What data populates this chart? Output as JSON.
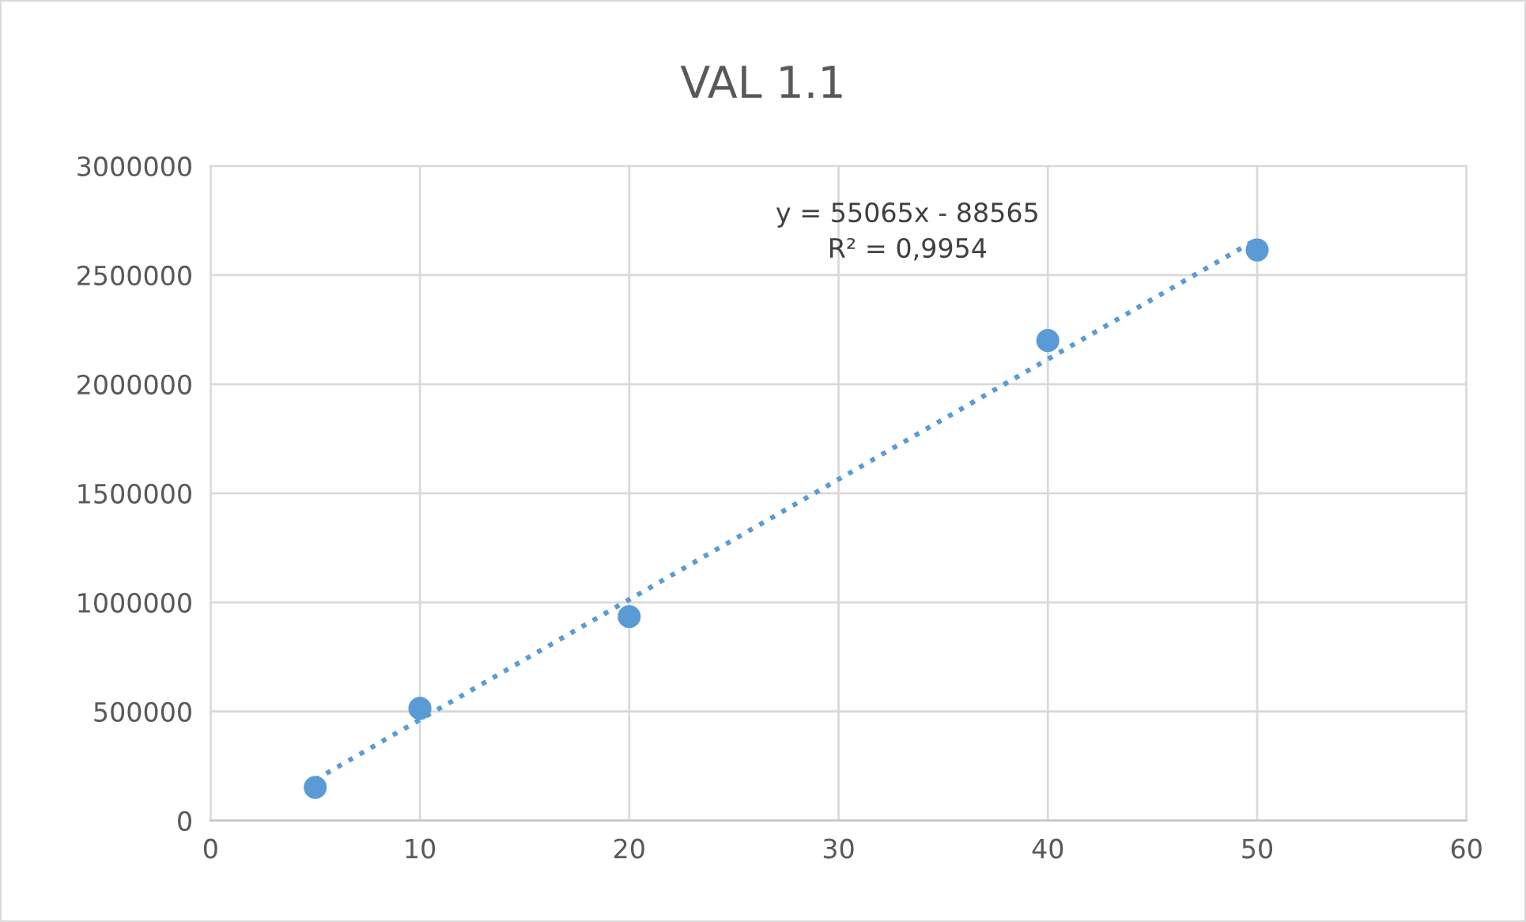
{
  "chart_data": {
    "type": "scatter",
    "title": "VAL 1.1",
    "x": [
      5,
      10,
      20,
      40,
      50
    ],
    "series": [
      {
        "color": "#5b9bd5",
        "marker": "circle",
        "values": [
          152000,
          514000,
          935000,
          2200000,
          2615000
        ]
      },
      {
        "type": "line",
        "color": "#5b9bd5",
        "line_style": "dotted",
        "marker": "none",
        "x": [
          5,
          50
        ],
        "values": [
          187000,
          2665000
        ]
      }
    ],
    "annotations": [
      "y = 55065x - 88565\nR² = 0,9954"
    ],
    "xlim": [
      0,
      60
    ],
    "xticks": [
      0,
      10,
      20,
      30,
      40,
      50,
      60
    ],
    "ylim": [
      0,
      3000000
    ],
    "yticks": [
      0,
      500000,
      1000000,
      1500000,
      2000000,
      2500000,
      3000000
    ],
    "grid": true,
    "legend": false
  }
}
